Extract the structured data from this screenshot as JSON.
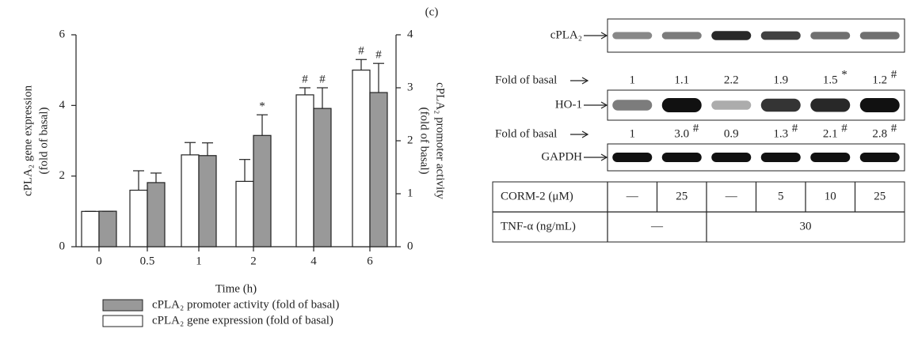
{
  "panel_label": "(c)",
  "chart_data": {
    "type": "bar",
    "xlabel": "Time (h)",
    "categories": [
      "0",
      "0.5",
      "1",
      "2",
      "4",
      "6"
    ],
    "ylabel": [
      "cPLA₂ gene expression",
      "(fold of basal)"
    ],
    "y2label": [
      "cPLA₂ promoter activity",
      "(fold of basal)"
    ],
    "ylim": [
      0,
      6
    ],
    "yticks": [
      0,
      2,
      4,
      6
    ],
    "y2lim": [
      0,
      4
    ],
    "y2ticks": [
      0,
      1,
      2,
      3,
      4
    ],
    "series": [
      {
        "name": "cPLA₂ gene expression (fold of basal)",
        "color": "#ffffff",
        "values": [
          1,
          1.6,
          2.6,
          1.85,
          4.3,
          5.0
        ],
        "errors": [
          0,
          0.55,
          0.35,
          0.62,
          0.2,
          0.3
        ],
        "significance": [
          null,
          null,
          null,
          null,
          "#",
          "#"
        ]
      },
      {
        "name": "cPLA₂ promoter activity (fold of basal)",
        "color": "#999999",
        "axis": "y2",
        "values": [
          0.67,
          1.21,
          1.72,
          2.1,
          2.61,
          2.91
        ],
        "errors": [
          0,
          0.18,
          0.24,
          0.39,
          0.39,
          0.55
        ],
        "significance": [
          null,
          null,
          null,
          "*",
          "#",
          "#"
        ]
      }
    ]
  },
  "blots": [
    {
      "label": "cPLA₂",
      "fold_label": "Fold of basal",
      "fold": [
        "1",
        "1.1",
        "2.2",
        "1.9",
        "1.5",
        "1.2"
      ],
      "fold_marks": [
        null,
        null,
        null,
        null,
        "*",
        "#"
      ]
    },
    {
      "label": "HO-1",
      "fold_label": "Fold of basal",
      "fold": [
        "1",
        "3.0",
        "0.9",
        "1.3",
        "2.1",
        "2.8"
      ],
      "fold_marks": [
        null,
        "#",
        null,
        "#",
        "#",
        "#"
      ]
    },
    {
      "label": "GAPDH"
    }
  ],
  "table": {
    "rows": [
      {
        "label": "CORM-2 (μM)",
        "cells": [
          "—",
          "25",
          "—",
          "5",
          "10",
          "25"
        ]
      },
      {
        "label": "TNF-α (ng/mL)",
        "cells": [
          "—",
          "30"
        ]
      }
    ]
  }
}
